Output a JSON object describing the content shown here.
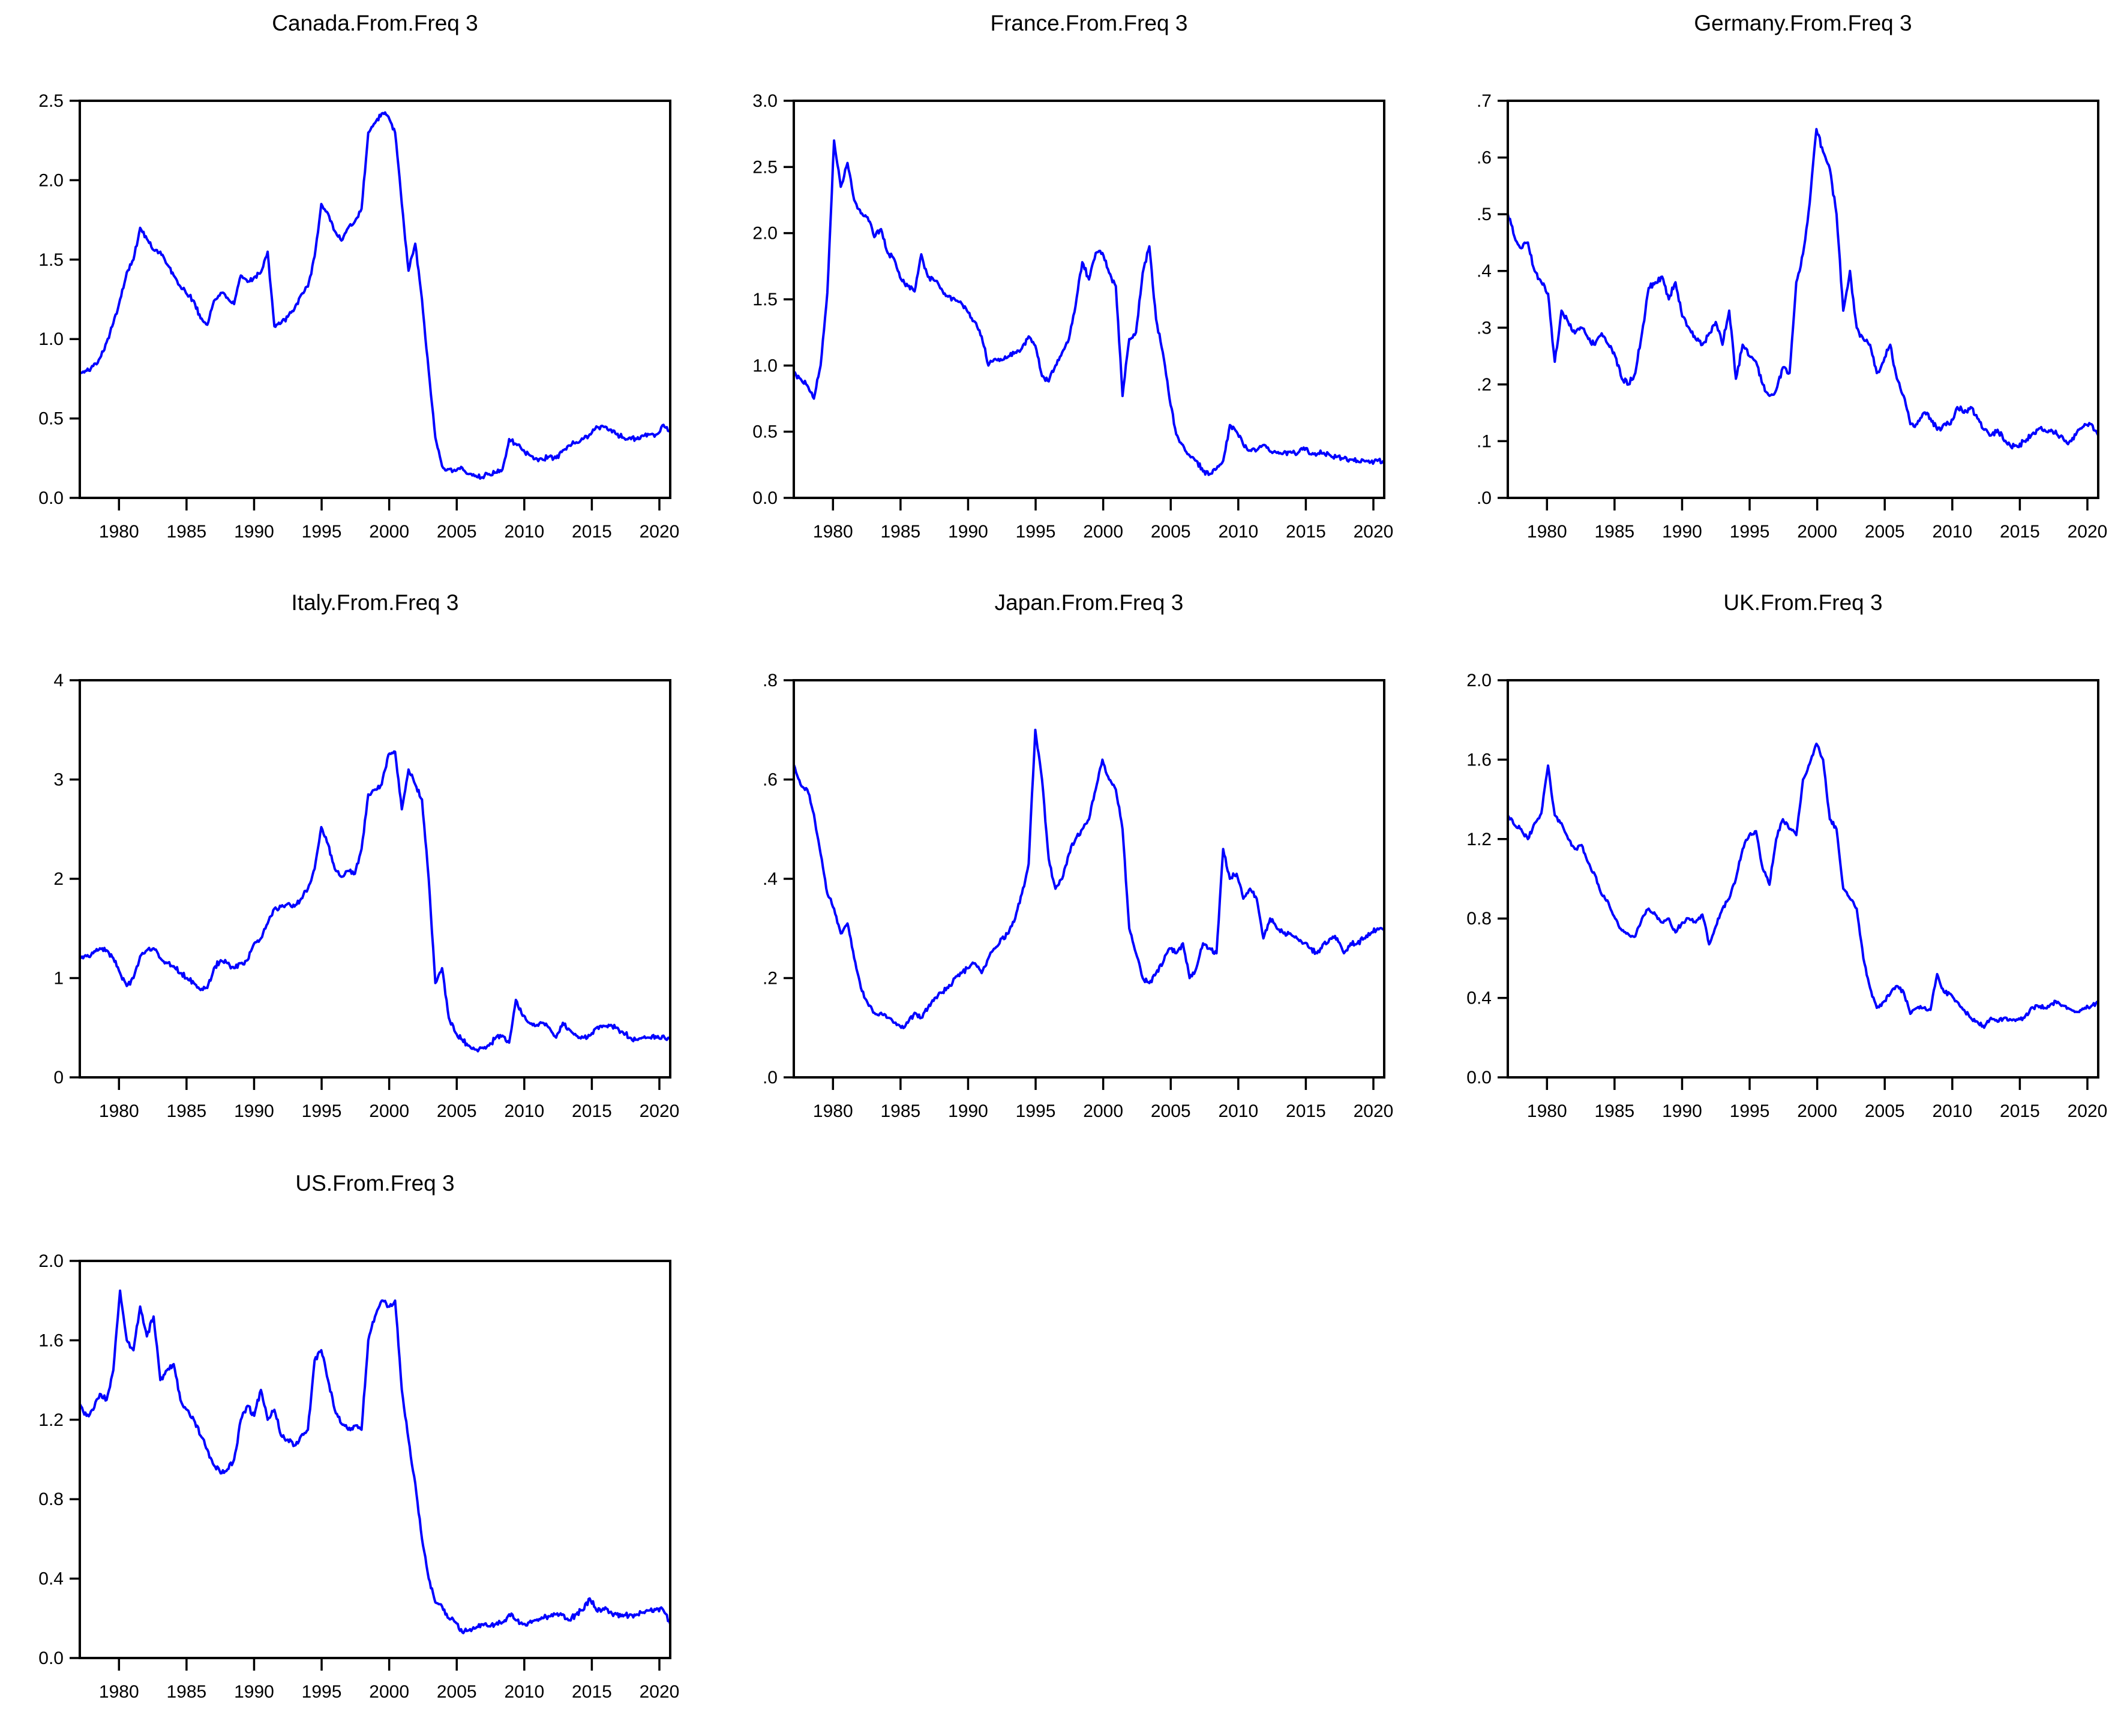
{
  "page": {
    "background": "#ffffff",
    "frame_color": "#000000",
    "text_color": "#000000"
  },
  "chart_data": [
    {
      "type": "line",
      "title": "Canada.From.Freq 3",
      "color": "#0000FF",
      "noise": 0.018,
      "xlim": [
        1977.1,
        2020.8
      ],
      "xticks": [
        1980,
        1985,
        1990,
        1995,
        2000,
        2005,
        2010,
        2015,
        2020
      ],
      "ylim": [
        0,
        2.5
      ],
      "yticks": [
        {
          "v": 0,
          "label": "0.0"
        },
        {
          "v": 0.5,
          "label": "0.5"
        },
        {
          "v": 1.0,
          "label": "1.0"
        },
        {
          "v": 1.5,
          "label": "1.5"
        },
        {
          "v": 2.0,
          "label": "2.0"
        },
        {
          "v": 2.5,
          "label": "2.5"
        }
      ],
      "x_start": 1977.0,
      "x_step": 0.5,
      "grid": false,
      "legend": null,
      "values": [
        0.78,
        0.8,
        0.83,
        0.88,
        0.98,
        1.1,
        1.25,
        1.42,
        1.5,
        1.7,
        1.63,
        1.56,
        1.55,
        1.47,
        1.4,
        1.33,
        1.28,
        1.24,
        1.13,
        1.09,
        1.24,
        1.29,
        1.26,
        1.22,
        1.4,
        1.36,
        1.39,
        1.42,
        1.55,
        1.08,
        1.1,
        1.14,
        1.19,
        1.28,
        1.33,
        1.52,
        1.85,
        1.79,
        1.68,
        1.62,
        1.7,
        1.74,
        1.82,
        2.3,
        2.36,
        2.42,
        2.4,
        2.3,
        1.85,
        1.43,
        1.6,
        1.25,
        0.8,
        0.38,
        0.2,
        0.18,
        0.17,
        0.19,
        0.15,
        0.14,
        0.13,
        0.15,
        0.16,
        0.18,
        0.37,
        0.34,
        0.3,
        0.27,
        0.25,
        0.24,
        0.26,
        0.25,
        0.3,
        0.33,
        0.35,
        0.37,
        0.4,
        0.45,
        0.45,
        0.43,
        0.4,
        0.38,
        0.38,
        0.37,
        0.39,
        0.4,
        0.4,
        0.46,
        0.42
      ]
    },
    {
      "type": "line",
      "title": "France.From.Freq 3",
      "color": "#0000FF",
      "noise": 0.022,
      "xlim": [
        1977.1,
        2020.8
      ],
      "xticks": [
        1980,
        1985,
        1990,
        1995,
        2000,
        2005,
        2010,
        2015,
        2020
      ],
      "ylim": [
        0,
        3.0
      ],
      "yticks": [
        {
          "v": 0,
          "label": "0.0"
        },
        {
          "v": 0.5,
          "label": "0.5"
        },
        {
          "v": 1.0,
          "label": "1.0"
        },
        {
          "v": 1.5,
          "label": "1.5"
        },
        {
          "v": 2.0,
          "label": "2.0"
        },
        {
          "v": 2.5,
          "label": "2.5"
        },
        {
          "v": 3.0,
          "label": "3.0"
        }
      ],
      "x_start": 1977.0,
      "x_step": 0.5,
      "grid": false,
      "legend": null,
      "values": [
        0.95,
        0.9,
        0.85,
        0.75,
        1.0,
        1.55,
        2.7,
        2.35,
        2.53,
        2.25,
        2.15,
        2.12,
        1.97,
        2.03,
        1.85,
        1.8,
        1.65,
        1.6,
        1.56,
        1.84,
        1.67,
        1.64,
        1.58,
        1.52,
        1.5,
        1.47,
        1.4,
        1.33,
        1.22,
        1.0,
        1.05,
        1.04,
        1.07,
        1.1,
        1.13,
        1.22,
        1.15,
        0.92,
        0.88,
        1.0,
        1.1,
        1.2,
        1.45,
        1.78,
        1.65,
        1.85,
        1.85,
        1.7,
        1.6,
        0.77,
        1.2,
        1.25,
        1.7,
        1.9,
        1.35,
        1.1,
        0.75,
        0.48,
        0.4,
        0.32,
        0.28,
        0.2,
        0.18,
        0.22,
        0.28,
        0.55,
        0.5,
        0.4,
        0.36,
        0.36,
        0.4,
        0.35,
        0.34,
        0.34,
        0.35,
        0.33,
        0.38,
        0.33,
        0.33,
        0.34,
        0.32,
        0.31,
        0.3,
        0.29,
        0.28,
        0.28,
        0.27,
        0.28,
        0.27
      ]
    },
    {
      "type": "line",
      "title": "Germany.From.Freq 3",
      "color": "#0000FF",
      "noise": 0.006,
      "xlim": [
        1977.1,
        2020.8
      ],
      "xticks": [
        1980,
        1985,
        1990,
        1995,
        2000,
        2005,
        2010,
        2015,
        2020
      ],
      "ylim": [
        0,
        0.7
      ],
      "yticks": [
        {
          "v": 0,
          "label": ".0"
        },
        {
          "v": 0.1,
          "label": ".1"
        },
        {
          "v": 0.2,
          "label": ".2"
        },
        {
          "v": 0.3,
          "label": ".3"
        },
        {
          "v": 0.4,
          "label": ".4"
        },
        {
          "v": 0.5,
          "label": ".5"
        },
        {
          "v": 0.6,
          "label": ".6"
        },
        {
          "v": 0.7,
          "label": ".7"
        }
      ],
      "x_start": 1977.0,
      "x_step": 0.5,
      "grid": false,
      "legend": null,
      "values": [
        0.5,
        0.46,
        0.44,
        0.45,
        0.4,
        0.38,
        0.36,
        0.24,
        0.33,
        0.31,
        0.29,
        0.3,
        0.28,
        0.27,
        0.29,
        0.27,
        0.25,
        0.21,
        0.2,
        0.22,
        0.29,
        0.37,
        0.38,
        0.39,
        0.35,
        0.38,
        0.32,
        0.3,
        0.28,
        0.27,
        0.29,
        0.31,
        0.27,
        0.33,
        0.21,
        0.27,
        0.25,
        0.24,
        0.2,
        0.18,
        0.19,
        0.23,
        0.22,
        0.38,
        0.43,
        0.52,
        0.65,
        0.61,
        0.58,
        0.5,
        0.33,
        0.4,
        0.3,
        0.28,
        0.27,
        0.22,
        0.24,
        0.27,
        0.21,
        0.18,
        0.13,
        0.13,
        0.15,
        0.14,
        0.12,
        0.13,
        0.13,
        0.16,
        0.15,
        0.16,
        0.14,
        0.12,
        0.11,
        0.12,
        0.1,
        0.09,
        0.09,
        0.1,
        0.11,
        0.12,
        0.12,
        0.12,
        0.11,
        0.1,
        0.1,
        0.12,
        0.13,
        0.13,
        0.11
      ]
    },
    {
      "type": "line",
      "title": "Italy.From.Freq 3",
      "color": "#0000FF",
      "noise": 0.028,
      "xlim": [
        1977.1,
        2020.8
      ],
      "xticks": [
        1980,
        1985,
        1990,
        1995,
        2000,
        2005,
        2010,
        2015,
        2020
      ],
      "ylim": [
        0,
        4
      ],
      "yticks": [
        {
          "v": 0,
          "label": "0"
        },
        {
          "v": 1,
          "label": "1"
        },
        {
          "v": 2,
          "label": "2"
        },
        {
          "v": 3,
          "label": "3"
        },
        {
          "v": 4,
          "label": "4"
        }
      ],
      "x_start": 1977.0,
      "x_step": 0.5,
      "grid": false,
      "legend": null,
      "values": [
        1.2,
        1.22,
        1.25,
        1.3,
        1.28,
        1.2,
        1.05,
        0.92,
        1.0,
        1.22,
        1.28,
        1.3,
        1.2,
        1.15,
        1.12,
        1.05,
        1.0,
        0.95,
        0.88,
        0.9,
        1.1,
        1.18,
        1.15,
        1.1,
        1.15,
        1.18,
        1.35,
        1.4,
        1.55,
        1.7,
        1.72,
        1.75,
        1.72,
        1.8,
        1.9,
        2.1,
        2.52,
        2.35,
        2.1,
        2.02,
        2.08,
        2.05,
        2.3,
        2.85,
        2.9,
        2.95,
        3.25,
        3.28,
        2.7,
        3.1,
        2.95,
        2.8,
        2.0,
        0.95,
        1.1,
        0.6,
        0.45,
        0.38,
        0.32,
        0.28,
        0.3,
        0.32,
        0.4,
        0.42,
        0.35,
        0.78,
        0.62,
        0.55,
        0.52,
        0.55,
        0.5,
        0.4,
        0.55,
        0.48,
        0.42,
        0.4,
        0.42,
        0.5,
        0.52,
        0.52,
        0.5,
        0.45,
        0.4,
        0.38,
        0.4,
        0.4,
        0.4,
        0.42,
        0.38
      ]
    },
    {
      "type": "line",
      "title": "Japan.From.Freq 3",
      "color": "#0000FF",
      "noise": 0.006,
      "xlim": [
        1977.1,
        2020.8
      ],
      "xticks": [
        1980,
        1985,
        1990,
        1995,
        2000,
        2005,
        2010,
        2015,
        2020
      ],
      "ylim": [
        0,
        0.8
      ],
      "yticks": [
        {
          "v": 0,
          "label": ".0"
        },
        {
          "v": 0.2,
          "label": ".2"
        },
        {
          "v": 0.4,
          "label": ".4"
        },
        {
          "v": 0.6,
          "label": ".6"
        },
        {
          "v": 0.8,
          "label": ".8"
        }
      ],
      "x_start": 1977.0,
      "x_step": 0.5,
      "grid": false,
      "legend": null,
      "values": [
        0.63,
        0.59,
        0.58,
        0.53,
        0.45,
        0.37,
        0.34,
        0.29,
        0.31,
        0.24,
        0.18,
        0.15,
        0.13,
        0.13,
        0.12,
        0.11,
        0.1,
        0.11,
        0.13,
        0.12,
        0.14,
        0.16,
        0.17,
        0.18,
        0.2,
        0.21,
        0.22,
        0.23,
        0.21,
        0.24,
        0.26,
        0.28,
        0.29,
        0.32,
        0.37,
        0.43,
        0.7,
        0.6,
        0.44,
        0.38,
        0.4,
        0.45,
        0.48,
        0.5,
        0.52,
        0.58,
        0.64,
        0.6,
        0.58,
        0.5,
        0.3,
        0.25,
        0.2,
        0.19,
        0.21,
        0.23,
        0.26,
        0.25,
        0.27,
        0.2,
        0.22,
        0.27,
        0.26,
        0.25,
        0.46,
        0.4,
        0.41,
        0.36,
        0.38,
        0.36,
        0.28,
        0.32,
        0.3,
        0.29,
        0.29,
        0.28,
        0.27,
        0.26,
        0.25,
        0.27,
        0.28,
        0.28,
        0.25,
        0.27,
        0.27,
        0.28,
        0.29,
        0.3,
        0.3
      ]
    },
    {
      "type": "line",
      "title": "UK.From.Freq 3",
      "color": "#0000FF",
      "noise": 0.012,
      "xlim": [
        1977.1,
        2020.8
      ],
      "xticks": [
        1980,
        1985,
        1990,
        1995,
        2000,
        2005,
        2010,
        2015,
        2020
      ],
      "ylim": [
        0,
        2.0
      ],
      "yticks": [
        {
          "v": 0,
          "label": "0.0"
        },
        {
          "v": 0.4,
          "label": "0.4"
        },
        {
          "v": 0.8,
          "label": "0.8"
        },
        {
          "v": 1.2,
          "label": "1.2"
        },
        {
          "v": 1.6,
          "label": "1.6"
        },
        {
          "v": 2.0,
          "label": "2.0"
        }
      ],
      "x_start": 1977.0,
      "x_step": 0.5,
      "grid": false,
      "legend": null,
      "values": [
        1.32,
        1.27,
        1.25,
        1.2,
        1.28,
        1.33,
        1.57,
        1.32,
        1.28,
        1.2,
        1.15,
        1.17,
        1.08,
        1.02,
        0.92,
        0.88,
        0.8,
        0.74,
        0.72,
        0.71,
        0.8,
        0.85,
        0.82,
        0.78,
        0.8,
        0.73,
        0.78,
        0.8,
        0.78,
        0.82,
        0.67,
        0.76,
        0.85,
        0.9,
        1.0,
        1.15,
        1.22,
        1.24,
        1.05,
        0.97,
        1.2,
        1.3,
        1.25,
        1.22,
        1.5,
        1.58,
        1.68,
        1.6,
        1.3,
        1.25,
        0.95,
        0.9,
        0.85,
        0.6,
        0.45,
        0.35,
        0.38,
        0.42,
        0.46,
        0.43,
        0.32,
        0.35,
        0.35,
        0.34,
        0.52,
        0.43,
        0.42,
        0.38,
        0.34,
        0.3,
        0.28,
        0.25,
        0.3,
        0.28,
        0.3,
        0.29,
        0.29,
        0.3,
        0.35,
        0.36,
        0.35,
        0.37,
        0.38,
        0.36,
        0.34,
        0.33,
        0.35,
        0.36,
        0.38
      ]
    },
    {
      "type": "line",
      "title": "US.From.Freq 3",
      "color": "#0000FF",
      "noise": 0.016,
      "xlim": [
        1977.1,
        2020.8
      ],
      "xticks": [
        1980,
        1985,
        1990,
        1995,
        2000,
        2005,
        2010,
        2015,
        2020
      ],
      "ylim": [
        0,
        2.0
      ],
      "yticks": [
        {
          "v": 0,
          "label": "0.0"
        },
        {
          "v": 0.4,
          "label": "0.4"
        },
        {
          "v": 0.8,
          "label": "0.8"
        },
        {
          "v": 1.2,
          "label": "1.2"
        },
        {
          "v": 1.6,
          "label": "1.6"
        },
        {
          "v": 2.0,
          "label": "2.0"
        }
      ],
      "x_start": 1977.0,
      "x_step": 0.5,
      "grid": false,
      "legend": null,
      "values": [
        1.28,
        1.22,
        1.25,
        1.33,
        1.3,
        1.45,
        1.85,
        1.6,
        1.55,
        1.77,
        1.62,
        1.72,
        1.4,
        1.45,
        1.48,
        1.3,
        1.25,
        1.2,
        1.12,
        1.05,
        0.97,
        0.93,
        0.95,
        1.0,
        1.2,
        1.27,
        1.22,
        1.35,
        1.2,
        1.25,
        1.12,
        1.1,
        1.07,
        1.12,
        1.15,
        1.5,
        1.55,
        1.4,
        1.25,
        1.18,
        1.15,
        1.17,
        1.15,
        1.6,
        1.72,
        1.8,
        1.77,
        1.8,
        1.35,
        1.1,
        0.88,
        0.6,
        0.4,
        0.28,
        0.26,
        0.2,
        0.18,
        0.13,
        0.14,
        0.15,
        0.17,
        0.16,
        0.17,
        0.18,
        0.22,
        0.19,
        0.17,
        0.18,
        0.19,
        0.2,
        0.21,
        0.22,
        0.22,
        0.19,
        0.22,
        0.24,
        0.3,
        0.24,
        0.25,
        0.23,
        0.22,
        0.21,
        0.22,
        0.22,
        0.23,
        0.24,
        0.25,
        0.24,
        0.17
      ]
    }
  ]
}
